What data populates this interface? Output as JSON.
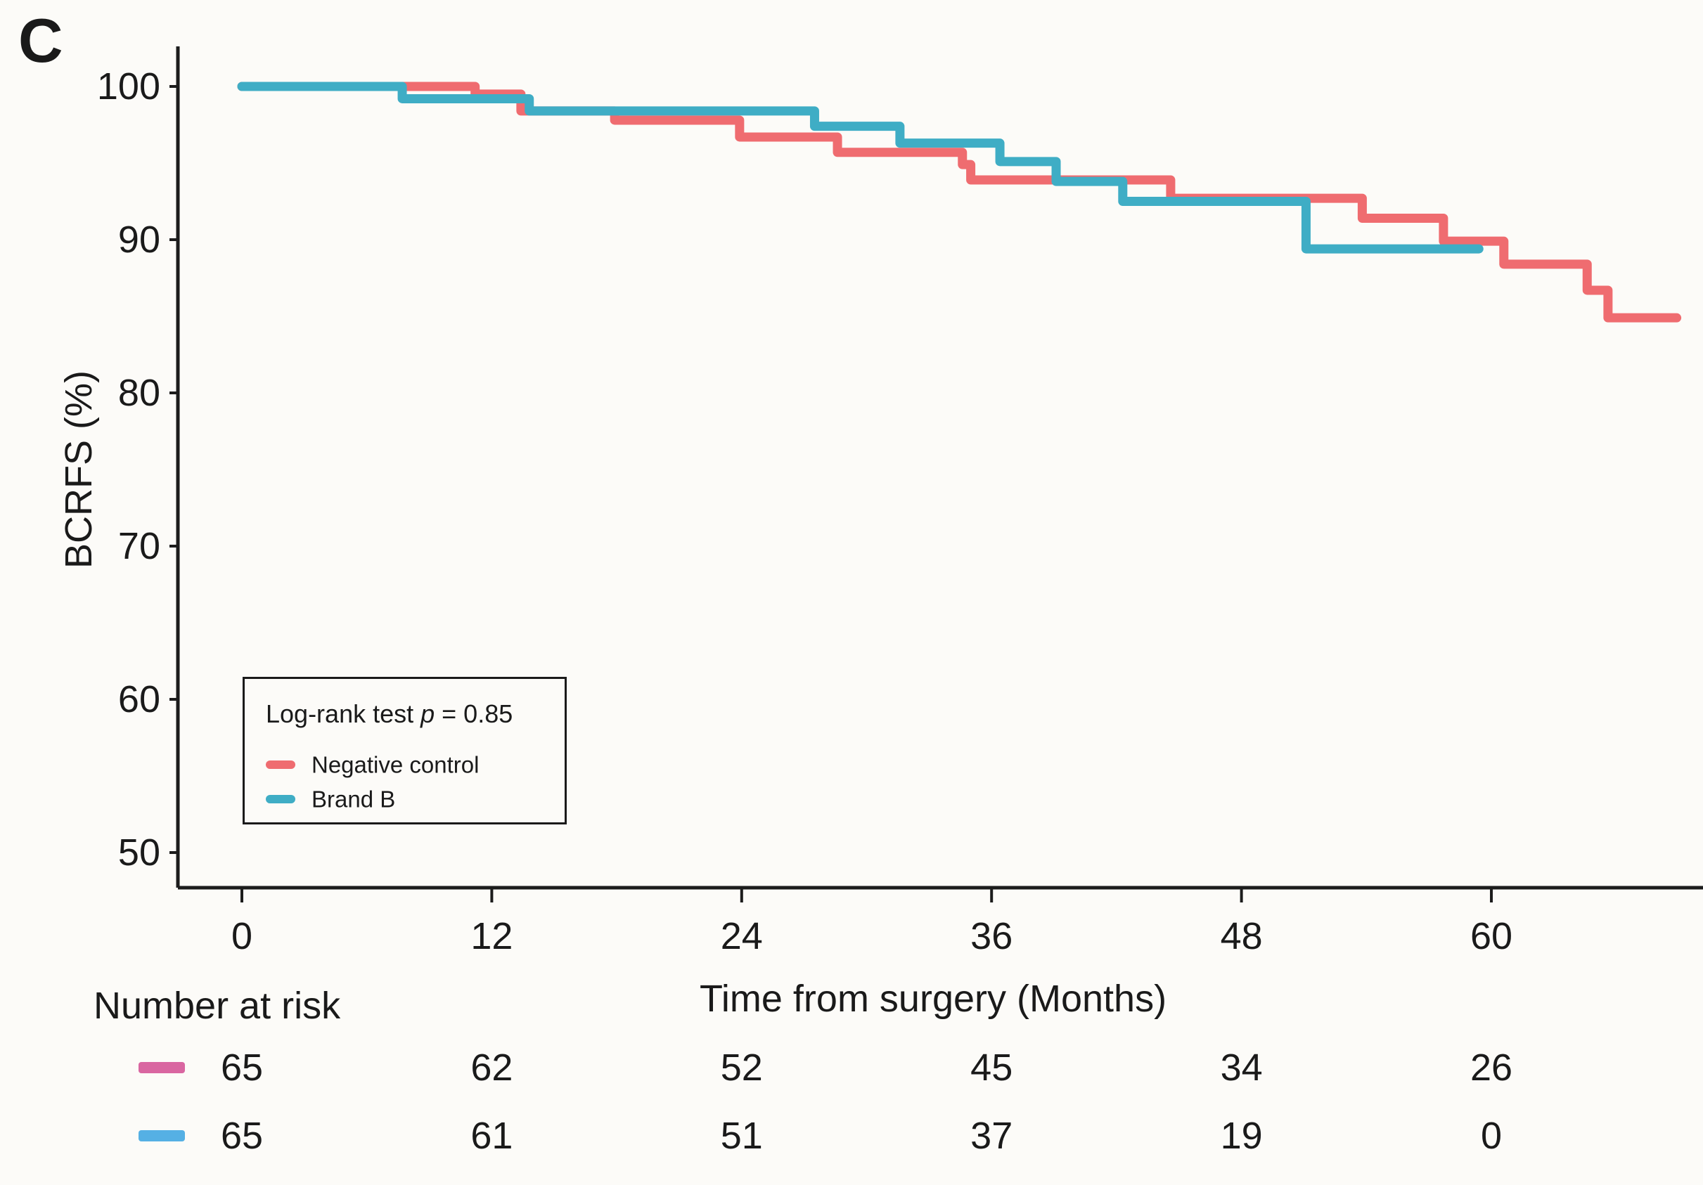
{
  "figure": {
    "panel_label": "C"
  },
  "chart_data": {
    "type": "line",
    "chart_style": "kaplan-meier-step-curve",
    "title": "",
    "xlabel": "Time from surgery (Months)",
    "ylabel": "BCRFS (%)",
    "x_ticks": [
      0,
      12,
      24,
      36,
      48,
      60
    ],
    "y_ticks": [
      100,
      90,
      80,
      70,
      60,
      50
    ],
    "xlim": [
      -3.1,
      70.2
    ],
    "ylim": [
      47.7,
      102.6
    ],
    "grid": false,
    "legend": {
      "position": "inside lower-left",
      "stat_prefix": "Log-rank test ",
      "stat_p_symbol": "p",
      "stat_value": " = 0.85",
      "entries": [
        {
          "label": "Negative control",
          "color": "#ef6c70"
        },
        {
          "label": "Brand B",
          "color": "#3fadc5"
        }
      ]
    },
    "series": [
      {
        "name": "Negative control",
        "color": "#ef6c70",
        "points": [
          [
            0,
            100
          ],
          [
            11.2,
            99.5
          ],
          [
            13.4,
            98.4
          ],
          [
            17.9,
            97.8
          ],
          [
            23.9,
            96.7
          ],
          [
            28.6,
            95.7
          ],
          [
            34.6,
            94.9
          ],
          [
            35.0,
            93.9
          ],
          [
            44.6,
            92.7
          ],
          [
            53.8,
            91.4
          ],
          [
            57.7,
            89.9
          ],
          [
            60.6,
            88.4
          ],
          [
            64.6,
            86.7
          ],
          [
            65.6,
            84.9
          ]
        ],
        "end_time": 68.9
      },
      {
        "name": "Brand B",
        "color": "#3fadc5",
        "points": [
          [
            0,
            100
          ],
          [
            7.7,
            99.2
          ],
          [
            13.8,
            98.4
          ],
          [
            27.5,
            97.4
          ],
          [
            31.6,
            96.3
          ],
          [
            36.4,
            95.1
          ],
          [
            39.1,
            93.8
          ],
          [
            42.3,
            92.5
          ],
          [
            51.1,
            89.4
          ]
        ],
        "end_time": 59.4
      }
    ],
    "risk_table": {
      "title": "Number at risk",
      "times": [
        0,
        12,
        24,
        36,
        48,
        60
      ],
      "rows": [
        {
          "name": "Negative control",
          "marker_color": "#d966a1",
          "counts": [
            65,
            62,
            52,
            45,
            34,
            26
          ]
        },
        {
          "name": "Brand B",
          "marker_color": "#55b0e4",
          "counts": [
            65,
            61,
            51,
            37,
            19,
            0
          ]
        }
      ]
    }
  }
}
